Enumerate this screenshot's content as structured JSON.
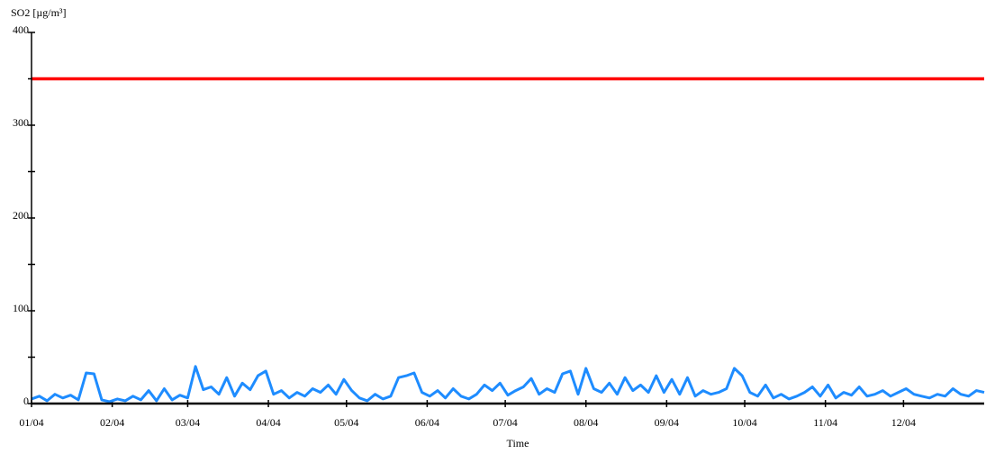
{
  "chart_data": {
    "type": "line",
    "ylabel": "SO2 [µg/m³]",
    "xlabel": "Time",
    "xlim": [
      0,
      366
    ],
    "ylim": [
      0,
      400
    ],
    "yticks": [
      0,
      100,
      200,
      300,
      400
    ],
    "yminor": [
      50,
      150,
      250,
      350
    ],
    "xticks": [
      {
        "value": 0,
        "label": "01/04"
      },
      {
        "value": 31,
        "label": "02/04"
      },
      {
        "value": 60,
        "label": "03/04"
      },
      {
        "value": 91,
        "label": "04/04"
      },
      {
        "value": 121,
        "label": "05/04"
      },
      {
        "value": 152,
        "label": "06/04"
      },
      {
        "value": 182,
        "label": "07/04"
      },
      {
        "value": 213,
        "label": "08/04"
      },
      {
        "value": 244,
        "label": "09/04"
      },
      {
        "value": 274,
        "label": "10/04"
      },
      {
        "value": 305,
        "label": "11/04"
      },
      {
        "value": 335,
        "label": "12/04"
      }
    ],
    "hlines": [
      {
        "value": 350,
        "color": "#ff0000"
      }
    ],
    "series": [
      {
        "color": "#1e8cff",
        "x": [
          0,
          3,
          6,
          9,
          12,
          15,
          18,
          21,
          24,
          27,
          30,
          33,
          36,
          39,
          42,
          45,
          48,
          51,
          54,
          57,
          60,
          63,
          66,
          69,
          72,
          75,
          78,
          81,
          84,
          87,
          90,
          93,
          96,
          99,
          102,
          105,
          108,
          111,
          114,
          117,
          120,
          123,
          126,
          129,
          132,
          135,
          138,
          141,
          144,
          147,
          150,
          153,
          156,
          159,
          162,
          165,
          168,
          171,
          174,
          177,
          180,
          183,
          186,
          189,
          192,
          195,
          198,
          201,
          204,
          207,
          210,
          213,
          216,
          219,
          222,
          225,
          228,
          231,
          234,
          237,
          240,
          243,
          246,
          249,
          252,
          255,
          258,
          261,
          264,
          267,
          270,
          273,
          276,
          279,
          282,
          285,
          288,
          291,
          294,
          297,
          300,
          303,
          306,
          309,
          312,
          315,
          318,
          321,
          324,
          327,
          330,
          333,
          336,
          339,
          342,
          345,
          348,
          351,
          354,
          357,
          360,
          363,
          366
        ],
        "values": [
          5,
          8,
          3,
          10,
          6,
          9,
          4,
          33,
          32,
          4,
          2,
          5,
          3,
          8,
          4,
          14,
          3,
          16,
          4,
          9,
          6,
          40,
          15,
          18,
          10,
          28,
          8,
          22,
          15,
          30,
          35,
          10,
          14,
          6,
          12,
          8,
          16,
          12,
          20,
          10,
          26,
          14,
          6,
          3,
          10,
          5,
          8,
          28,
          30,
          33,
          12,
          8,
          14,
          6,
          16,
          8,
          5,
          10,
          20,
          14,
          22,
          9,
          14,
          18,
          27,
          10,
          16,
          12,
          32,
          35,
          10,
          38,
          16,
          12,
          22,
          10,
          28,
          14,
          20,
          12,
          30,
          12,
          26,
          10,
          28,
          8,
          14,
          10,
          12,
          16,
          38,
          30,
          12,
          8,
          20,
          6,
          10,
          5,
          8,
          12,
          18,
          8,
          20,
          6,
          12,
          9,
          18,
          8,
          10,
          14,
          8,
          12,
          16,
          10,
          8,
          6,
          10,
          8,
          16,
          10,
          8,
          14,
          12
        ]
      }
    ]
  }
}
